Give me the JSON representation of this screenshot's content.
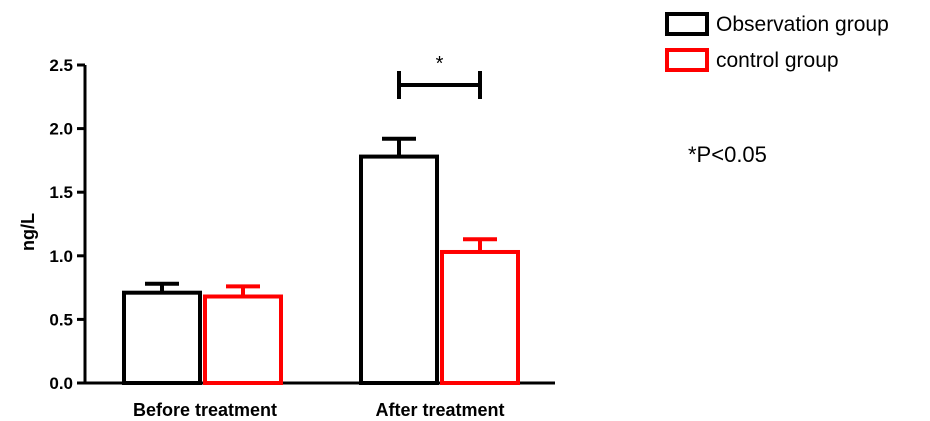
{
  "chart_data": {
    "type": "bar",
    "ylabel": "ng/L",
    "ylim": [
      0,
      2.5
    ],
    "yticks": [
      "0.0",
      "0.5",
      "1.0",
      "1.5",
      "2.0",
      "2.5"
    ],
    "categories": [
      "Before treatment",
      "After treatment"
    ],
    "series": [
      {
        "name": "Observation group",
        "color": "#000000",
        "values": [
          0.71,
          1.78
        ],
        "errors": [
          0.07,
          0.14
        ]
      },
      {
        "name": "control group",
        "color": "#ff0000",
        "values": [
          0.68,
          1.03
        ],
        "errors": [
          0.08,
          0.1
        ]
      }
    ],
    "significance": {
      "category": "After treatment",
      "label": "*"
    },
    "note": "*P<0.05",
    "grid": false,
    "legend_position": "top-right"
  }
}
